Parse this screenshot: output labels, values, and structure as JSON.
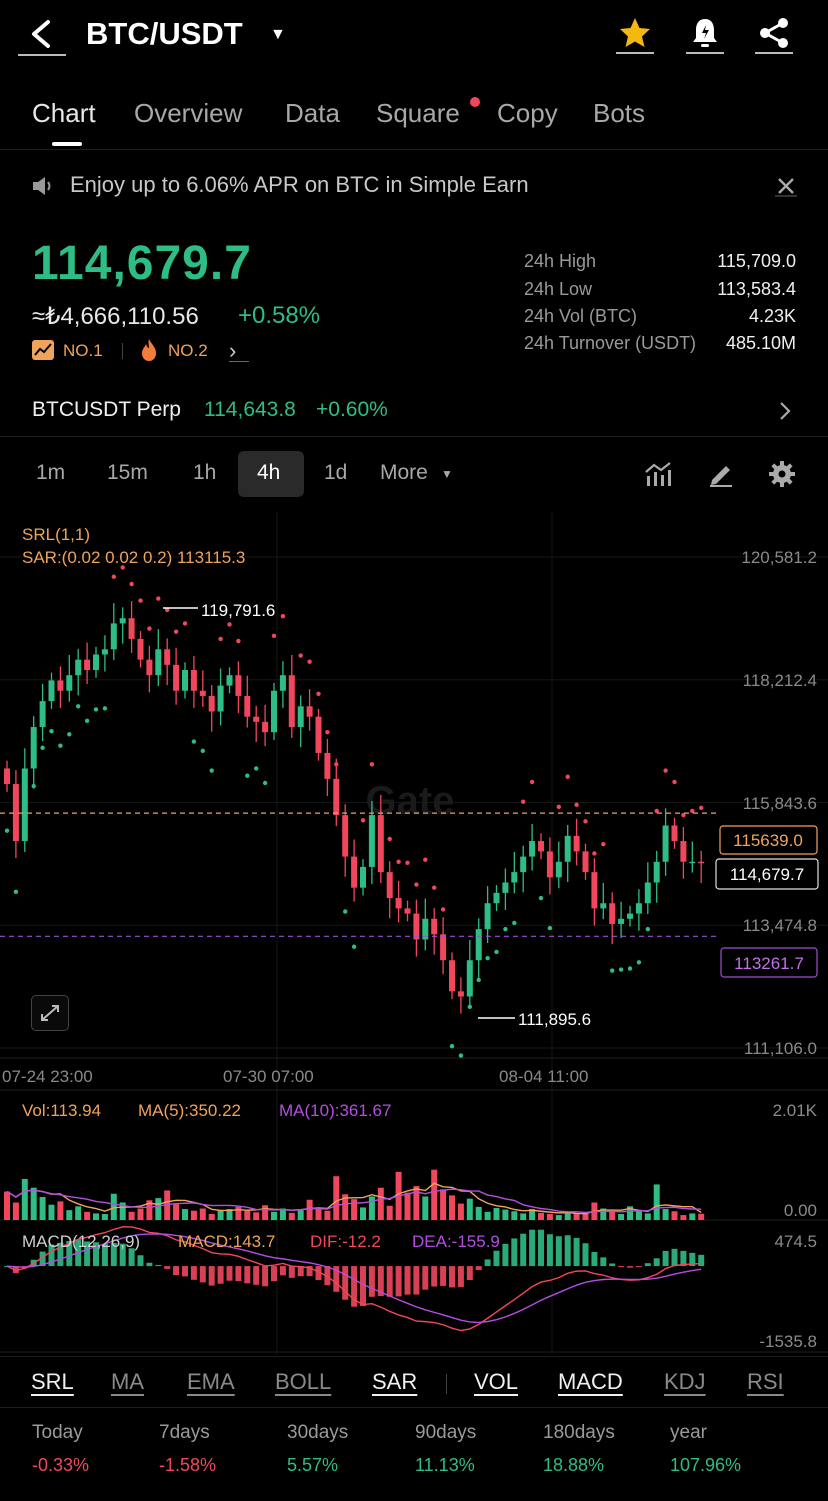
{
  "header": {
    "pair": "BTC/USDT"
  },
  "tabs": [
    {
      "label": "Chart",
      "active": true
    },
    {
      "label": "Overview"
    },
    {
      "label": "Data"
    },
    {
      "label": "Square",
      "badge_dot": true
    },
    {
      "label": "Copy"
    },
    {
      "label": "Bots"
    }
  ],
  "promo": {
    "text": "Enjoy up to 6.06% APR on BTC in Simple Earn"
  },
  "ticker": {
    "price": "114,679.7",
    "fiat_price": "≈₺4,666,110.56",
    "change": "+0.58%",
    "rank1": "NO.1",
    "rank2": "NO.2",
    "stats": [
      {
        "label": "24h High",
        "value": "115,709.0"
      },
      {
        "label": "24h Low",
        "value": "113,583.4"
      },
      {
        "label": "24h Vol (BTC)",
        "value": "4.23K"
      },
      {
        "label": "24h Turnover (USDT)",
        "value": "485.10M"
      }
    ]
  },
  "perp": {
    "label": "BTCUSDT Perp",
    "price": "114,643.8",
    "change": "+0.60%"
  },
  "intervals": [
    "1m",
    "15m",
    "1h",
    "4h",
    "1d",
    "More"
  ],
  "active_interval": "4h",
  "chart_data": {
    "type": "candlestick",
    "watermark": "Gate",
    "indicator_labels": {
      "srl": "SRL(1,1)",
      "sar": "SAR:(0.02 0.02 0.2) 113115.3"
    },
    "y_axis_ticks": [
      "120,581.2",
      "118,212.4",
      "115,843.6",
      "113,474.8",
      "111,106.0"
    ],
    "y_axis_values": [
      120581.2,
      118212.4,
      115843.6,
      113474.8,
      111106.0
    ],
    "x_axis_ticks": [
      "07-24 23:00",
      "07-30 07:00",
      "08-04 11:00"
    ],
    "high_marker": "119,791.6",
    "low_marker": "111,895.6",
    "last_price_tag": "114,679.7",
    "srl_upper_tag": "115639.0",
    "srl_lower_tag": "113261.7",
    "closes": [
      116200,
      115100,
      116500,
      117300,
      117800,
      118200,
      118000,
      118300,
      118600,
      118400,
      118700,
      118800,
      119300,
      119400,
      119000,
      118600,
      118300,
      118800,
      118500,
      118000,
      118400,
      118000,
      117900,
      117600,
      118100,
      118300,
      117900,
      117500,
      117400,
      117200,
      118000,
      118300,
      117300,
      117700,
      117500,
      116800,
      116300,
      115600,
      114800,
      114200,
      114600,
      115600,
      114500,
      114000,
      113800,
      113700,
      113200,
      113600,
      113300,
      112800,
      112200,
      112100,
      112800,
      113400,
      113900,
      114100,
      114300,
      114500,
      114800,
      115100,
      114900,
      114400,
      114700,
      115200,
      114900,
      114500,
      113800,
      113900,
      113500,
      113600,
      113700,
      113900,
      114300,
      114700,
      115400,
      115100,
      114700,
      114700,
      114680
    ],
    "volume": {
      "label": "Vol:113.94",
      "ma5": "MA(5):350.22",
      "ma10": "MA(10):361.67",
      "top_tick": "2.01K",
      "bottom_tick": "0.00",
      "bars": [
        520,
        320,
        750,
        590,
        420,
        280,
        340,
        180,
        250,
        150,
        120,
        110,
        480,
        320,
        150,
        210,
        360,
        400,
        540,
        290,
        200,
        170,
        210,
        110,
        180,
        200,
        240,
        170,
        140,
        270,
        150,
        210,
        130,
        180,
        370,
        210,
        170,
        800,
        470,
        380,
        230,
        430,
        590,
        260,
        880,
        500,
        620,
        430,
        920,
        560,
        450,
        300,
        390,
        240,
        150,
        220,
        190,
        160,
        120,
        200,
        130,
        110,
        90,
        150,
        120,
        110,
        320,
        210,
        150,
        110,
        250,
        160,
        120,
        650,
        200,
        160,
        90,
        120,
        114
      ]
    },
    "macd": {
      "label": "MACD(12,26,9)",
      "macd": "MACD:143.7",
      "dif": "DIF:-12.2",
      "dea": "DEA:-155.9",
      "top_tick": "474.5",
      "bottom_tick": "-1535.8"
    }
  },
  "indicators": [
    {
      "label": "SRL",
      "on": true
    },
    {
      "label": "MA"
    },
    {
      "label": "EMA"
    },
    {
      "label": "BOLL"
    },
    {
      "label": "SAR",
      "on": true
    },
    {
      "label": "VOL",
      "on": true
    },
    {
      "label": "MACD",
      "on": true
    },
    {
      "label": "KDJ"
    },
    {
      "label": "RSI"
    }
  ],
  "performance": [
    {
      "label": "Today",
      "value": "-0.33%",
      "color": "#f0475c"
    },
    {
      "label": "7days",
      "value": "-1.58%",
      "color": "#f0475c"
    },
    {
      "label": "30days",
      "value": "5.57%",
      "color": "#2ebd85"
    },
    {
      "label": "90days",
      "value": "11.13%",
      "color": "#2ebd85"
    },
    {
      "label": "180days",
      "value": "18.88%",
      "color": "#2ebd85"
    },
    {
      "label": "year",
      "value": "107.96%",
      "color": "#2ebd85"
    }
  ],
  "colors": {
    "up": "#2ebd85",
    "down": "#f0475c",
    "sar": "#f0475c",
    "srl_upper": "#f0a35a",
    "srl_lower": "#a04fd0",
    "ma5": "#f0a35a",
    "ma10": "#b24fe0"
  }
}
